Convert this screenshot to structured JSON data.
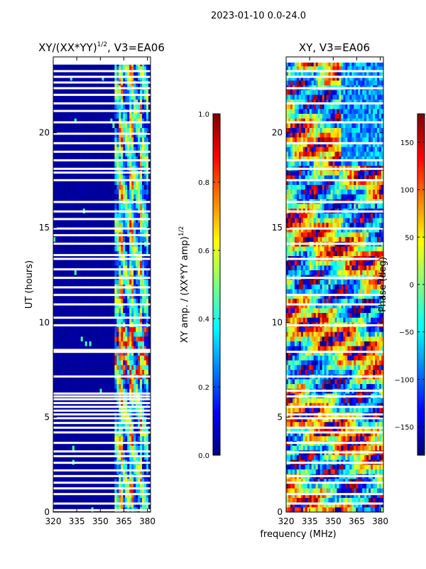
{
  "figure": {
    "suptitle": "2023-01-10 0.0-24.0",
    "xlabel": "frequency (MHz)"
  },
  "colors": {
    "jet": [
      "#00007f",
      "#0000ff",
      "#007fff",
      "#00ffff",
      "#7fff7f",
      "#ffff00",
      "#ff7f00",
      "#ff0000",
      "#7f0000"
    ],
    "gap": "#ffffff",
    "frame": "#000000"
  },
  "chart_data": [
    {
      "type": "heatmap",
      "title_main": "XY/(XX*YY)",
      "title_sup": "1/2",
      "title_rest": ", V3=EA06",
      "xlabel": "",
      "ylabel": "UT (hours)",
      "xlim": [
        320,
        382
      ],
      "ylim": [
        0,
        24
      ],
      "xticks": [
        320,
        335,
        350,
        365,
        380
      ],
      "yticks": [
        0,
        5,
        10,
        15,
        20
      ],
      "rfi_band_mhz": [
        359.5,
        381
      ],
      "colorbar": {
        "label_main": "XY amp. / (XX*YY amp)",
        "label_sup": "1/2",
        "range": [
          0.0,
          1.0
        ],
        "ticks": [
          "0.0",
          "0.2",
          "0.4",
          "0.6",
          "0.8",
          "1.0"
        ]
      },
      "bad_channels_mhz": [
        [
          362,
          364.5
        ],
        [
          368.5,
          371
        ],
        [
          375,
          376.5
        ]
      ],
      "gaps_hours": [
        0.1,
        0.45,
        0.95,
        1.25,
        1.55,
        1.9,
        2.2,
        2.6,
        2.95,
        3.2,
        3.65,
        4.2,
        4.45,
        4.7,
        4.95,
        5.15,
        5.35,
        5.55,
        5.75,
        5.95,
        6.1,
        6.25,
        7.15,
        8.45,
        8.55,
        9.85,
        10.25,
        10.95,
        11.45,
        11.85,
        12.35,
        12.8,
        13.35,
        13.55,
        14.15,
        14.6,
        14.95,
        15.45,
        15.85,
        16.35,
        17.5,
        17.9,
        18.1,
        18.55,
        19.0,
        19.45,
        19.95,
        20.55,
        21.15,
        21.55,
        22.0,
        22.35,
        22.65,
        22.95,
        23.25,
        23.65
      ]
    },
    {
      "type": "heatmap",
      "title": "XY, V3=EA06",
      "xlabel": "",
      "ylabel": "",
      "xlim": [
        320,
        382
      ],
      "ylim": [
        0,
        24
      ],
      "xticks": [
        320,
        335,
        350,
        365,
        380
      ],
      "yticks": [
        0,
        5,
        10,
        15,
        20
      ],
      "colorbar": {
        "label": "Phase (deg)",
        "range": [
          -180,
          180
        ],
        "ticks": [
          "−150",
          "−100",
          "−50",
          "0",
          "50",
          "100",
          "150"
        ]
      },
      "gaps_hours": [
        0.45,
        0.95,
        1.55,
        1.9,
        2.6,
        3.15,
        3.65,
        4.2,
        4.45,
        4.95,
        5.15,
        5.55,
        6.1,
        6.4,
        7.15,
        8.45,
        9.85,
        10.95,
        11.45,
        12.35,
        13.35,
        14.15,
        14.95,
        15.85,
        16.35,
        17.5,
        18.1,
        18.55,
        19.45,
        20.55,
        21.55,
        22.35,
        22.95,
        23.25
      ]
    }
  ]
}
